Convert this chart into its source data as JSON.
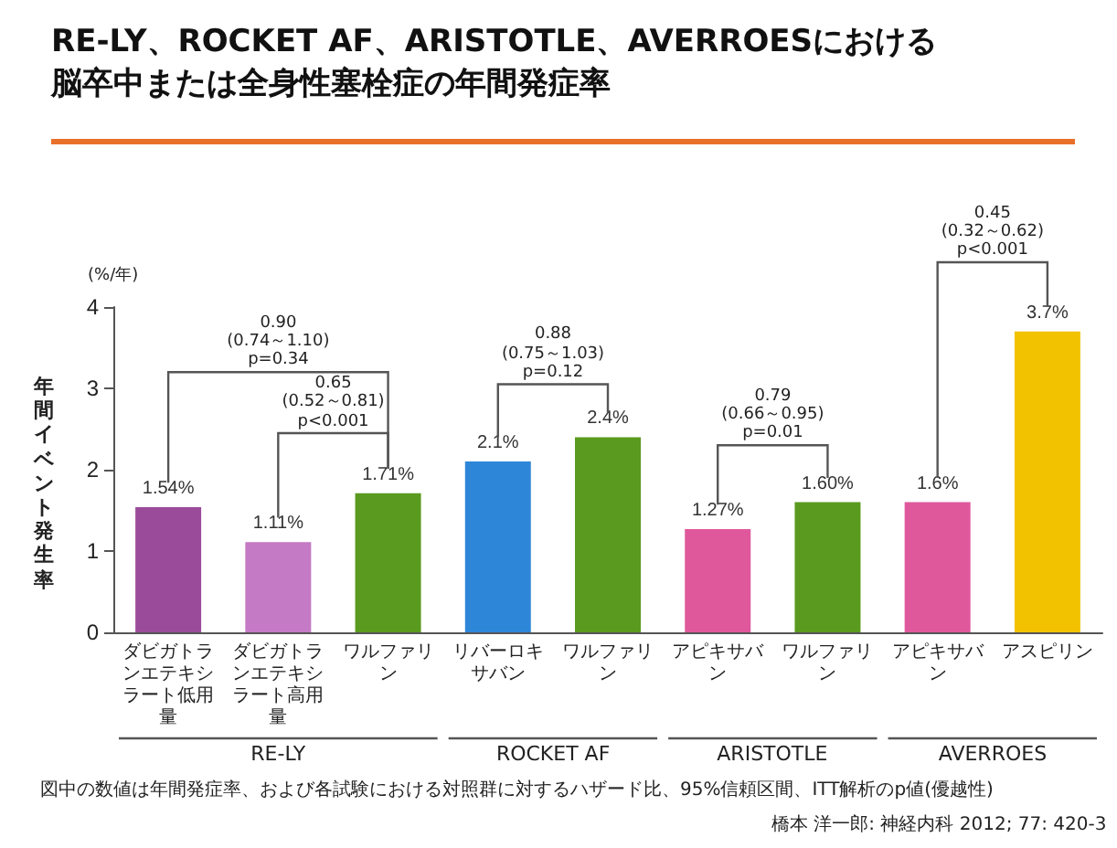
{
  "chart_data": {
    "type": "bar",
    "title": "RE-LY、ROCKET AF、ARISTOTLE、AVERROESにおける脳卒中または全身性塞栓症の年間発症率",
    "ylabel": "年間イベント発生率",
    "categories": [
      "ダビガトランエテキシラート低用量",
      "ダビガトランエテキシラート高用量",
      "ワルファリン",
      "リバーロキサバン",
      "ワルファリン",
      "アピキサバン",
      "ワルファリン",
      "アピキサバン",
      "アスピリン"
    ],
    "values": [
      1.54,
      1.11,
      1.71,
      2.1,
      2.4,
      1.27,
      1.6,
      1.6,
      3.7
    ],
    "value_labels": [
      "1.54%",
      "1.11%",
      "1.71%",
      "2.1%",
      "2.4%",
      "1.27%",
      "1.60%",
      "1.6%",
      "3.7%"
    ],
    "colors": [
      "#9a4c9a",
      "#c47ac4",
      "#5a9a1e",
      "#2e86d9",
      "#5a9a1e",
      "#e0589c",
      "#5a9a1e",
      "#e0589c",
      "#f2c200"
    ],
    "ylim": [
      0,
      4
    ],
    "yticks": [
      0,
      1,
      2,
      3,
      4
    ],
    "grid": false,
    "annotations": [
      "0.90\n(0.74～1.10)\np=0.34",
      "0.65\n(0.52～0.81)\np<0.001",
      "0.88\n(0.75～1.03)\np=0.12",
      "0.79\n(0.66～0.95)\np=0.01",
      "0.45\n(0.32～0.62)\np<0.001",
      "RE-LY",
      "ROCKET AF",
      "ARISTOTLE",
      "AVERROES",
      "(%/年)",
      "図中の数値は年間発症率、および各試験における対照群に対するハザード比、95%信頼区間、ITT解析のp値(優越性)",
      "橋本 洋一郎: 神経内科 2012; 77: 420-3"
    ]
  }
}
